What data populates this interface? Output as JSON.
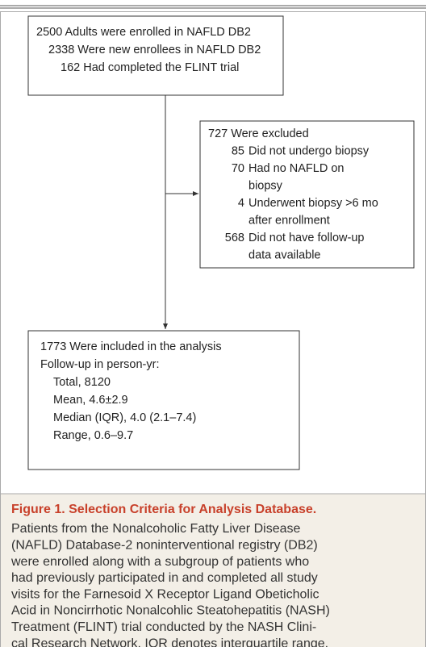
{
  "figure": {
    "enrollment": {
      "lines": [
        "2500 Adults were enrolled in NAFLD DB2",
        "2338 Were new enrollees in NAFLD DB2",
        "162 Had completed the FLINT trial"
      ]
    },
    "excluded": {
      "title": "727 Were excluded",
      "items": [
        {
          "count": "85",
          "lines": [
            "Did not undergo biopsy"
          ]
        },
        {
          "count": "70",
          "lines": [
            "Had no NAFLD on",
            "biopsy"
          ]
        },
        {
          "count": "4",
          "lines": [
            "Underwent biopsy >6 mo",
            "after enrollment"
          ]
        },
        {
          "count": "568",
          "lines": [
            "Did not have follow-up",
            "data available"
          ]
        }
      ]
    },
    "included": {
      "title": "1773 Were included in the analysis",
      "subtitle": "Follow-up in person-yr:",
      "items": [
        "Total, 8120",
        "Mean, 4.6±2.9",
        "Median (IQR), 4.0 (2.1–7.4)",
        "Range, 0.6–9.7"
      ]
    },
    "caption": {
      "title": "Figure 1. Selection Criteria for Analysis Database.",
      "lines": [
        "Patients from the Nonalcoholic Fatty Liver Disease",
        "(NAFLD) Database-2 noninterventional registry (DB2)",
        "were enrolled along with a subgroup of patients who",
        "had previously participated in and completed all study",
        "visits for the Farnesoid X Receptor Ligand Obeticholic",
        "Acid in Noncirrhotic Nonalcohlic Steatohepatitis (NASH)",
        "Treatment (FLINT) trial conducted by the NASH Clini-",
        "cal Research Network. IQR denotes interquartile range."
      ]
    }
  }
}
